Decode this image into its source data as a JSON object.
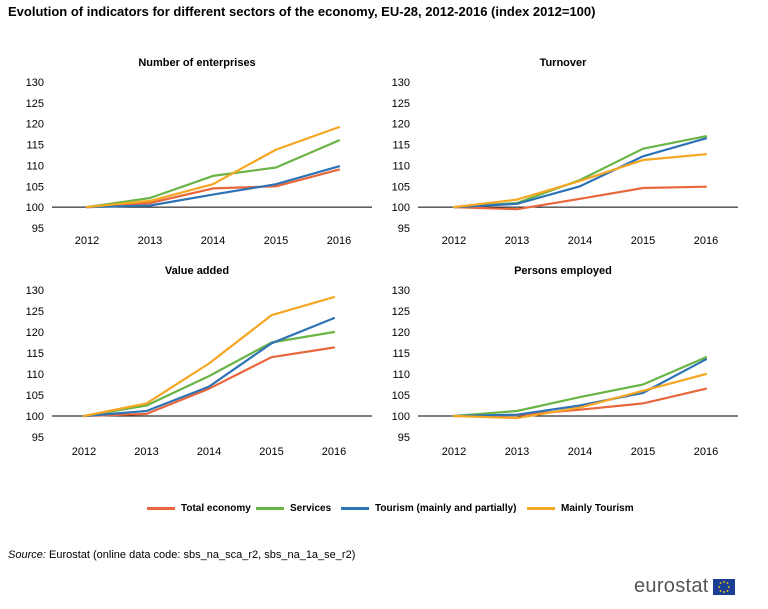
{
  "title": "Evolution of indicators for different sectors of the economy, EU-28, 2012-2016 (index 2012=100)",
  "source_label": "Source:",
  "source_text": "Eurostat (online data code: sbs_na_sca_r2, sbs_na_1a_se_r2)",
  "logo_text": "eurostat",
  "legend": [
    {
      "name": "Total economy",
      "color": "#e8673c"
    },
    {
      "name": "Services",
      "color": "#6ab446"
    },
    {
      "name": "Tourism (mainly and partially)",
      "color": "#2e74b5"
    },
    {
      "name": "Mainly Tourism",
      "color": "#f5a623"
    }
  ],
  "chart_data": [
    {
      "type": "line",
      "title": "Number of enterprises",
      "categories": [
        "2012",
        "2013",
        "2014",
        "2015",
        "2016"
      ],
      "ylim": [
        95,
        130
      ],
      "yticks": [
        95,
        100,
        105,
        110,
        115,
        120,
        125,
        130
      ],
      "series": [
        {
          "name": "Total economy",
          "values": [
            100,
            101.0,
            104.5,
            105.0,
            109.0
          ]
        },
        {
          "name": "Services",
          "values": [
            100,
            102.2,
            107.5,
            109.5,
            116.0
          ]
        },
        {
          "name": "Tourism (mainly and partially)",
          "values": [
            100,
            100.4,
            103.0,
            105.5,
            109.8
          ]
        },
        {
          "name": "Mainly Tourism",
          "values": [
            100,
            101.5,
            105.5,
            113.8,
            119.2
          ]
        }
      ]
    },
    {
      "type": "line",
      "title": "Turnover",
      "categories": [
        "2012",
        "2013",
        "2014",
        "2015",
        "2016"
      ],
      "ylim": [
        95,
        130
      ],
      "yticks": [
        95,
        100,
        105,
        110,
        115,
        120,
        125,
        130
      ],
      "series": [
        {
          "name": "Total economy",
          "values": [
            100,
            99.5,
            102.0,
            104.6,
            104.9
          ]
        },
        {
          "name": "Services",
          "values": [
            100,
            101.0,
            106.5,
            114.0,
            117.0
          ]
        },
        {
          "name": "Tourism (mainly and partially)",
          "values": [
            100,
            100.8,
            105.0,
            112.2,
            116.5
          ]
        },
        {
          "name": "Mainly Tourism",
          "values": [
            100,
            101.8,
            106.3,
            111.3,
            112.7
          ]
        }
      ]
    },
    {
      "type": "line",
      "title": "Value added",
      "categories": [
        "2012",
        "2013",
        "2014",
        "2015",
        "2016"
      ],
      "ylim": [
        95,
        130
      ],
      "yticks": [
        95,
        100,
        105,
        110,
        115,
        120,
        125,
        130
      ],
      "series": [
        {
          "name": "Total economy",
          "values": [
            100,
            100.5,
            106.5,
            114.0,
            116.3
          ]
        },
        {
          "name": "Services",
          "values": [
            100,
            102.5,
            109.5,
            117.5,
            120.0
          ]
        },
        {
          "name": "Tourism (mainly and partially)",
          "values": [
            100,
            101.2,
            107.0,
            117.3,
            123.3
          ]
        },
        {
          "name": "Mainly Tourism",
          "values": [
            100,
            103.0,
            112.5,
            124.0,
            128.3
          ]
        }
      ]
    },
    {
      "type": "line",
      "title": "Persons employed",
      "categories": [
        "2012",
        "2013",
        "2014",
        "2015",
        "2016"
      ],
      "ylim": [
        95,
        130
      ],
      "yticks": [
        95,
        100,
        105,
        110,
        115,
        120,
        125,
        130
      ],
      "series": [
        {
          "name": "Total economy",
          "values": [
            100,
            100.2,
            101.5,
            103.0,
            106.5
          ]
        },
        {
          "name": "Services",
          "values": [
            100,
            101.2,
            104.5,
            107.5,
            114.0
          ]
        },
        {
          "name": "Tourism (mainly and partially)",
          "values": [
            100,
            100.3,
            102.5,
            105.5,
            113.5
          ]
        },
        {
          "name": "Mainly Tourism",
          "values": [
            100,
            99.5,
            102.0,
            106.0,
            110.0
          ]
        }
      ]
    }
  ]
}
